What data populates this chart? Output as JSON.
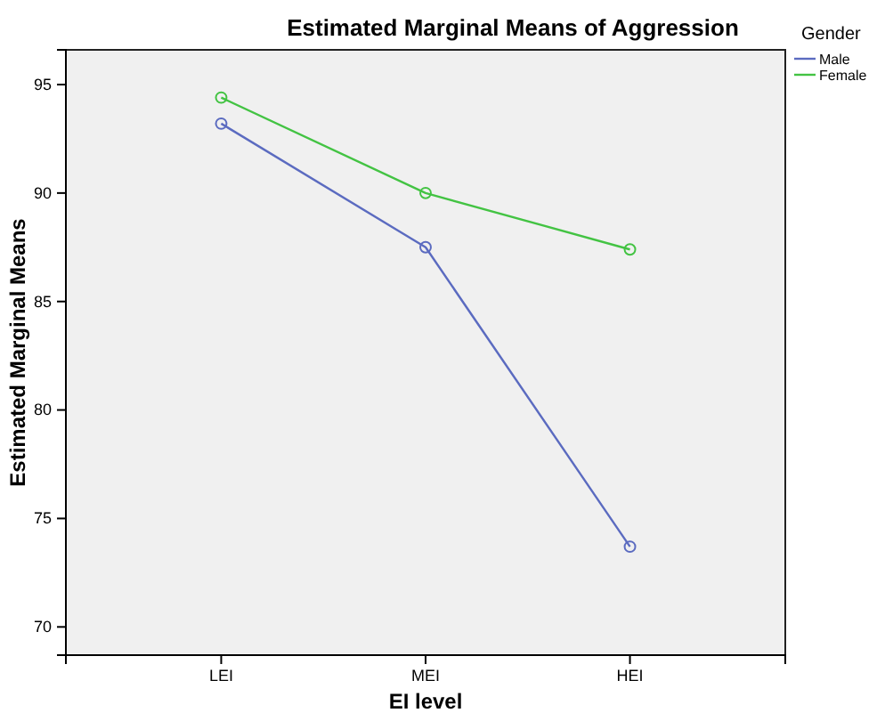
{
  "chart_data": {
    "type": "line",
    "title": "Estimated Marginal Means of Aggression",
    "xlabel": "EI level",
    "ylabel": "Estimated Marginal Means",
    "legend_title": "Gender",
    "categories": [
      "LEI",
      "MEI",
      "HEI"
    ],
    "series": [
      {
        "name": "Male",
        "color": "#5b6bc0",
        "values": [
          93.2,
          87.5,
          73.7
        ]
      },
      {
        "name": "Female",
        "color": "#43c343",
        "values": [
          94.4,
          90.0,
          87.4
        ]
      }
    ],
    "ylim": [
      68.7,
      96.6
    ],
    "yticks": [
      70,
      75,
      80,
      85,
      90,
      95
    ],
    "marker": "circle",
    "legend": "top right",
    "grid": false
  }
}
